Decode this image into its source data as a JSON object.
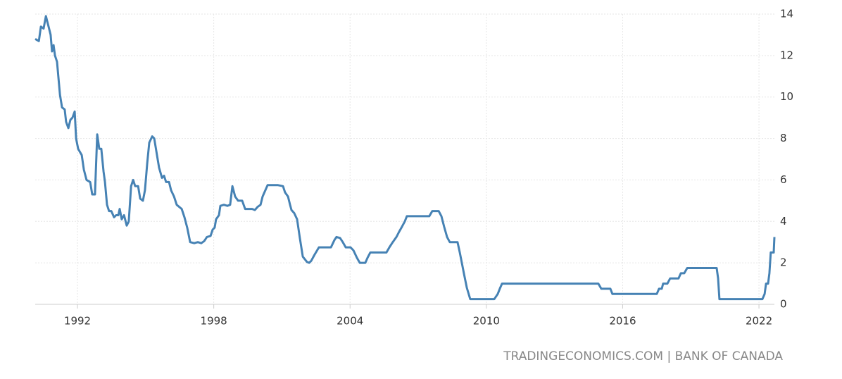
{
  "chart_data": {
    "type": "line",
    "source": "TRADINGECONOMICS.COM | BANK OF CANADA",
    "xlim": [
      1990.14,
      2022.68
    ],
    "xticks": [
      1992,
      1998,
      2004,
      2010,
      2016,
      2022
    ],
    "ylim": [
      0,
      14
    ],
    "yticks": [
      0,
      2,
      4,
      6,
      8,
      10,
      12,
      14
    ],
    "grid": true,
    "series": [
      {
        "color": "#4682b4",
        "x": [
          1990.14,
          1990.3,
          1990.39,
          1990.51,
          1990.61,
          1990.73,
          1990.82,
          1990.88,
          1990.95,
          1991.01,
          1991.1,
          1991.23,
          1991.32,
          1991.44,
          1991.5,
          1991.6,
          1991.69,
          1991.78,
          1991.88,
          1991.94,
          1992.03,
          1992.19,
          1992.28,
          1992.4,
          1992.56,
          1992.65,
          1992.77,
          1992.87,
          1992.96,
          1993.05,
          1993.15,
          1993.21,
          1993.3,
          1993.39,
          1993.49,
          1993.61,
          1993.7,
          1993.8,
          1993.86,
          1993.95,
          1994.05,
          1994.17,
          1994.26,
          1994.36,
          1994.45,
          1994.54,
          1994.67,
          1994.76,
          1994.88,
          1994.97,
          1995.07,
          1995.16,
          1995.29,
          1995.38,
          1995.47,
          1995.59,
          1995.72,
          1995.81,
          1995.9,
          1996.03,
          1996.12,
          1996.25,
          1996.37,
          1996.59,
          1996.71,
          1996.83,
          1996.96,
          1997.14,
          1997.3,
          1997.45,
          1997.58,
          1997.7,
          1997.86,
          1997.95,
          1998.04,
          1998.1,
          1998.23,
          1998.29,
          1998.45,
          1998.6,
          1998.72,
          1998.82,
          1998.94,
          1999.07,
          1999.25,
          1999.38,
          1999.69,
          1999.81,
          1999.93,
          2000.06,
          2000.15,
          2000.27,
          2000.37,
          2000.65,
          2000.83,
          2001.05,
          2001.14,
          2001.27,
          2001.36,
          2001.42,
          2001.54,
          2001.67,
          2001.79,
          2001.92,
          2002.1,
          2002.2,
          2002.29,
          2002.44,
          2002.63,
          2002.88,
          2003.16,
          2003.31,
          2003.4,
          2003.56,
          2003.68,
          2003.81,
          2004.02,
          2004.15,
          2004.3,
          2004.43,
          2004.67,
          2004.77,
          2004.89,
          2005.6,
          2005.73,
          2005.88,
          2006.04,
          2006.16,
          2006.29,
          2006.41,
          2006.5,
          2007.49,
          2007.62,
          2007.9,
          2008.02,
          2008.14,
          2008.27,
          2008.39,
          2008.73,
          2008.83,
          2008.92,
          2009.01,
          2009.14,
          2009.29,
          2010.35,
          2010.5,
          2010.59,
          2010.69,
          2014.93,
          2015.06,
          2015.46,
          2015.55,
          2017.5,
          2017.6,
          2017.72,
          2017.78,
          2017.97,
          2018.09,
          2018.46,
          2018.56,
          2018.71,
          2018.84,
          2020.14,
          2020.2,
          2020.26,
          2022.15,
          2022.25,
          2022.31,
          2022.4,
          2022.46,
          2022.52,
          2022.65,
          2022.68
        ],
        "values": [
          12.8,
          12.7,
          13.4,
          13.3,
          13.9,
          13.4,
          13.0,
          12.2,
          12.5,
          12.0,
          11.7,
          10.1,
          9.5,
          9.4,
          8.8,
          8.5,
          8.9,
          9.0,
          9.3,
          8.0,
          7.5,
          7.2,
          6.5,
          6.0,
          5.9,
          5.3,
          5.3,
          8.2,
          7.5,
          7.5,
          6.4,
          5.9,
          4.8,
          4.5,
          4.5,
          4.2,
          4.3,
          4.3,
          4.6,
          4.1,
          4.3,
          3.8,
          4.0,
          5.7,
          6.0,
          5.7,
          5.7,
          5.1,
          5.0,
          5.5,
          6.8,
          7.8,
          8.1,
          8.0,
          7.4,
          6.6,
          6.1,
          6.2,
          5.9,
          5.9,
          5.5,
          5.2,
          4.8,
          4.6,
          4.2,
          3.7,
          3.0,
          2.95,
          3.0,
          2.95,
          3.05,
          3.25,
          3.3,
          3.6,
          3.7,
          4.1,
          4.3,
          4.75,
          4.8,
          4.75,
          4.8,
          5.7,
          5.2,
          5.0,
          5.0,
          4.6,
          4.6,
          4.55,
          4.7,
          4.8,
          5.2,
          5.5,
          5.75,
          5.75,
          5.75,
          5.7,
          5.4,
          5.2,
          4.8,
          4.55,
          4.4,
          4.1,
          3.2,
          2.3,
          2.05,
          2.0,
          2.1,
          2.4,
          2.75,
          2.75,
          2.75,
          3.1,
          3.25,
          3.2,
          3.0,
          2.75,
          2.75,
          2.6,
          2.25,
          2.0,
          2.0,
          2.25,
          2.5,
          2.5,
          2.75,
          3.0,
          3.25,
          3.5,
          3.75,
          4.0,
          4.25,
          4.25,
          4.5,
          4.5,
          4.25,
          3.75,
          3.25,
          3.0,
          3.0,
          2.5,
          2.0,
          1.5,
          0.8,
          0.25,
          0.25,
          0.5,
          0.75,
          1.0,
          1.0,
          0.75,
          0.75,
          0.5,
          0.5,
          0.75,
          0.75,
          1.0,
          1.0,
          1.25,
          1.25,
          1.5,
          1.5,
          1.75,
          1.75,
          1.25,
          0.25,
          0.25,
          0.5,
          1.0,
          1.0,
          1.5,
          2.5,
          2.5,
          3.25
        ]
      }
    ]
  }
}
